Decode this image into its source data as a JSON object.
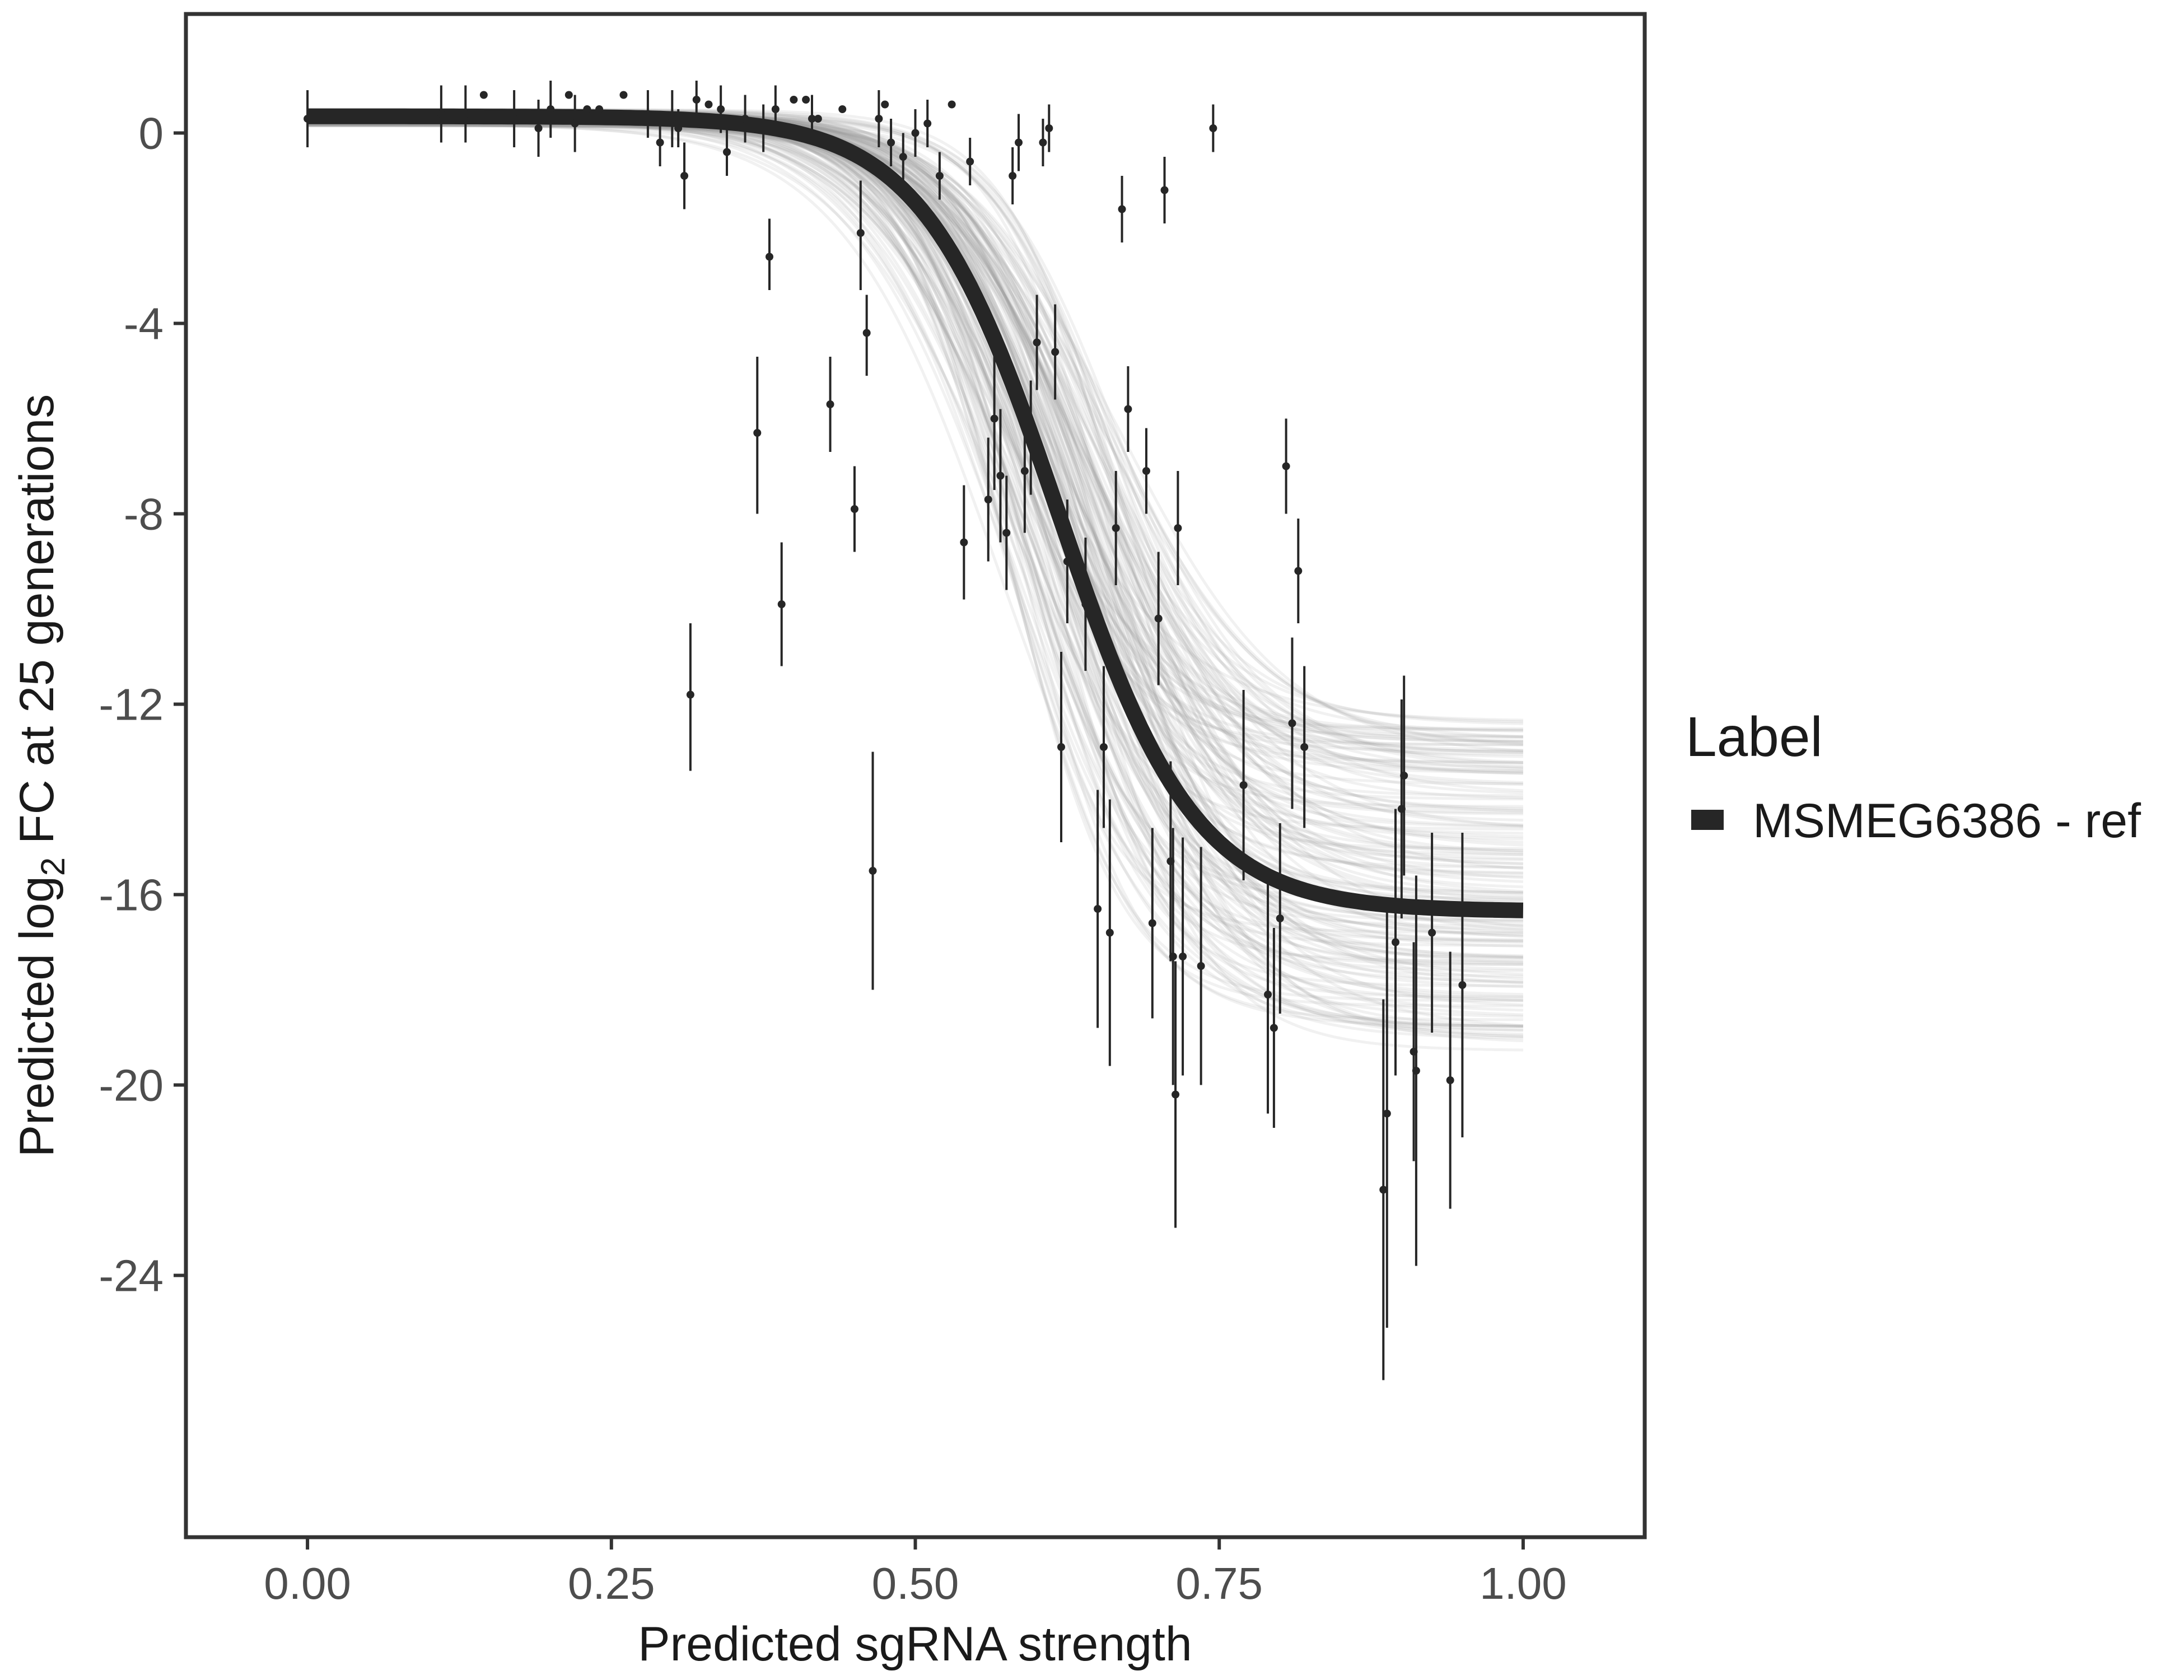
{
  "chart_data": {
    "type": "scatter",
    "xlabel": "Predicted sgRNA strength",
    "ylabel_prefix": "Predicted  log",
    "ylabel_sub": "2",
    "ylabel_suffix": " FC at 25 generations",
    "xlim": [
      -0.1,
      1.1
    ],
    "ylim": [
      -29.5,
      2.5
    ],
    "x_ticks": [
      0.0,
      0.25,
      0.5,
      0.75,
      1.0
    ],
    "x_tick_labels": [
      "0.00",
      "0.25",
      "0.50",
      "0.75",
      "1.00"
    ],
    "y_ticks": [
      0,
      -4,
      -8,
      -12,
      -16,
      -20,
      -24
    ],
    "y_tick_labels": [
      "0",
      "-4",
      "-8",
      "-12",
      "-16",
      "-20",
      "-24"
    ],
    "grid": false,
    "legend": {
      "title": "Label",
      "position": "right",
      "entries": [
        {
          "name": "MSMEG6386 - ref",
          "color": "#262626"
        }
      ]
    },
    "fit_curve": {
      "name": "MSMEG6386 - ref",
      "model": "logistic",
      "upper": 0.35,
      "lower": -16.35,
      "midpoint": 0.618,
      "scale": 0.056,
      "color": "#262626"
    },
    "posterior_band": {
      "n_draws": 160,
      "upper_range": [
        0.15,
        0.5
      ],
      "lower_range": [
        -19.3,
        -12.2
      ],
      "midpoint_range": [
        0.57,
        0.67
      ],
      "scale_range": [
        0.045,
        0.07
      ],
      "color": "#999999"
    },
    "series": [
      {
        "name": "observations",
        "points": [
          {
            "x": 0.0,
            "y": 0.3,
            "lo": -0.3,
            "hi": 0.9
          },
          {
            "x": 0.11,
            "y": 0.4,
            "lo": -0.2,
            "hi": 1.0
          },
          {
            "x": 0.13,
            "y": 0.4,
            "lo": -0.2,
            "hi": 1.0
          },
          {
            "x": 0.145,
            "y": 0.8,
            "lo": 0.8,
            "hi": 0.8
          },
          {
            "x": 0.17,
            "y": 0.3,
            "lo": -0.3,
            "hi": 0.9
          },
          {
            "x": 0.19,
            "y": 0.1,
            "lo": -0.5,
            "hi": 0.7
          },
          {
            "x": 0.2,
            "y": 0.5,
            "lo": -0.1,
            "hi": 1.1
          },
          {
            "x": 0.215,
            "y": 0.8,
            "lo": 0.8,
            "hi": 0.8
          },
          {
            "x": 0.22,
            "y": 0.2,
            "lo": -0.4,
            "hi": 0.8
          },
          {
            "x": 0.23,
            "y": 0.5,
            "lo": 0.5,
            "hi": 0.5
          },
          {
            "x": 0.24,
            "y": 0.5,
            "lo": 0.5,
            "hi": 0.5
          },
          {
            "x": 0.26,
            "y": 0.8,
            "lo": 0.8,
            "hi": 0.8
          },
          {
            "x": 0.28,
            "y": 0.4,
            "lo": -0.1,
            "hi": 0.9
          },
          {
            "x": 0.29,
            "y": -0.2,
            "lo": -0.7,
            "hi": 0.3
          },
          {
            "x": 0.3,
            "y": 0.3,
            "lo": -0.3,
            "hi": 0.9
          },
          {
            "x": 0.305,
            "y": 0.1,
            "lo": -0.3,
            "hi": 0.5
          },
          {
            "x": 0.31,
            "y": -0.9,
            "lo": -1.6,
            "hi": -0.2
          },
          {
            "x": 0.315,
            "y": -11.8,
            "lo": -13.4,
            "hi": -10.3
          },
          {
            "x": 0.32,
            "y": 0.7,
            "lo": 0.3,
            "hi": 1.1
          },
          {
            "x": 0.33,
            "y": 0.6,
            "lo": 0.6,
            "hi": 0.6
          },
          {
            "x": 0.34,
            "y": 0.5,
            "lo": 0.0,
            "hi": 1.0
          },
          {
            "x": 0.345,
            "y": -0.4,
            "lo": -0.9,
            "hi": 0.1
          },
          {
            "x": 0.36,
            "y": 0.3,
            "lo": -0.2,
            "hi": 0.8
          },
          {
            "x": 0.37,
            "y": -6.3,
            "lo": -8.0,
            "hi": -4.7
          },
          {
            "x": 0.375,
            "y": 0.1,
            "lo": -0.4,
            "hi": 0.6
          },
          {
            "x": 0.38,
            "y": -2.6,
            "lo": -3.3,
            "hi": -1.8
          },
          {
            "x": 0.385,
            "y": 0.5,
            "lo": 0.0,
            "hi": 1.0
          },
          {
            "x": 0.39,
            "y": -9.9,
            "lo": -11.2,
            "hi": -8.6
          },
          {
            "x": 0.4,
            "y": 0.7,
            "lo": 0.7,
            "hi": 0.7
          },
          {
            "x": 0.41,
            "y": 0.7,
            "lo": 0.7,
            "hi": 0.7
          },
          {
            "x": 0.415,
            "y": 0.3,
            "lo": -0.2,
            "hi": 0.8
          },
          {
            "x": 0.42,
            "y": 0.3,
            "lo": 0.3,
            "hi": 0.3
          },
          {
            "x": 0.43,
            "y": -5.7,
            "lo": -6.7,
            "hi": -4.7
          },
          {
            "x": 0.44,
            "y": 0.5,
            "lo": 0.5,
            "hi": 0.5
          },
          {
            "x": 0.45,
            "y": -7.9,
            "lo": -8.8,
            "hi": -7.0
          },
          {
            "x": 0.455,
            "y": -2.1,
            "lo": -3.3,
            "hi": -1.0
          },
          {
            "x": 0.46,
            "y": -4.2,
            "lo": -5.1,
            "hi": -3.4
          },
          {
            "x": 0.465,
            "y": -15.5,
            "lo": -18.0,
            "hi": -13.0
          },
          {
            "x": 0.47,
            "y": 0.3,
            "lo": -0.3,
            "hi": 0.9
          },
          {
            "x": 0.475,
            "y": 0.6,
            "lo": 0.6,
            "hi": 0.6
          },
          {
            "x": 0.48,
            "y": -0.2,
            "lo": -0.7,
            "hi": 0.3
          },
          {
            "x": 0.49,
            "y": -0.5,
            "lo": -1.0,
            "hi": 0.0
          },
          {
            "x": 0.5,
            "y": 0.0,
            "lo": -0.5,
            "hi": 0.5
          },
          {
            "x": 0.51,
            "y": 0.2,
            "lo": -0.3,
            "hi": 0.7
          },
          {
            "x": 0.52,
            "y": -0.9,
            "lo": -1.4,
            "hi": -0.4
          },
          {
            "x": 0.53,
            "y": 0.6,
            "lo": 0.6,
            "hi": 0.6
          },
          {
            "x": 0.54,
            "y": -8.6,
            "lo": -9.8,
            "hi": -7.4
          },
          {
            "x": 0.545,
            "y": -0.6,
            "lo": -1.1,
            "hi": -0.1
          },
          {
            "x": 0.56,
            "y": -7.7,
            "lo": -9.0,
            "hi": -6.4
          },
          {
            "x": 0.565,
            "y": -6.0,
            "lo": -7.5,
            "hi": -4.5
          },
          {
            "x": 0.57,
            "y": -7.2,
            "lo": -8.6,
            "hi": -5.8
          },
          {
            "x": 0.575,
            "y": -8.4,
            "lo": -9.6,
            "hi": -7.2
          },
          {
            "x": 0.58,
            "y": -0.9,
            "lo": -1.5,
            "hi": -0.3
          },
          {
            "x": 0.585,
            "y": -0.2,
            "lo": -0.8,
            "hi": 0.4
          },
          {
            "x": 0.59,
            "y": -7.1,
            "lo": -8.4,
            "hi": -5.8
          },
          {
            "x": 0.595,
            "y": -6.4,
            "lo": -7.6,
            "hi": -5.2
          },
          {
            "x": 0.6,
            "y": -4.4,
            "lo": -5.4,
            "hi": -3.4
          },
          {
            "x": 0.605,
            "y": -0.2,
            "lo": -0.7,
            "hi": 0.3
          },
          {
            "x": 0.61,
            "y": 0.1,
            "lo": -0.4,
            "hi": 0.6
          },
          {
            "x": 0.615,
            "y": -4.6,
            "lo": -5.6,
            "hi": -3.6
          },
          {
            "x": 0.62,
            "y": -12.9,
            "lo": -14.9,
            "hi": -10.9
          },
          {
            "x": 0.625,
            "y": -9.0,
            "lo": -10.3,
            "hi": -7.7
          },
          {
            "x": 0.64,
            "y": -9.9,
            "lo": -11.3,
            "hi": -8.5
          },
          {
            "x": 0.65,
            "y": -16.3,
            "lo": -18.8,
            "hi": -13.8
          },
          {
            "x": 0.655,
            "y": -12.9,
            "lo": -14.6,
            "hi": -11.2
          },
          {
            "x": 0.66,
            "y": -16.8,
            "lo": -19.6,
            "hi": -14.0
          },
          {
            "x": 0.665,
            "y": -8.3,
            "lo": -9.5,
            "hi": -7.1
          },
          {
            "x": 0.67,
            "y": -1.6,
            "lo": -2.3,
            "hi": -0.9
          },
          {
            "x": 0.675,
            "y": -5.8,
            "lo": -6.7,
            "hi": -4.9
          },
          {
            "x": 0.69,
            "y": -7.1,
            "lo": -8.0,
            "hi": -6.2
          },
          {
            "x": 0.695,
            "y": -16.6,
            "lo": -18.6,
            "hi": -14.6
          },
          {
            "x": 0.7,
            "y": -10.2,
            "lo": -11.6,
            "hi": -8.8
          },
          {
            "x": 0.705,
            "y": -1.2,
            "lo": -1.9,
            "hi": -0.5
          },
          {
            "x": 0.71,
            "y": -15.3,
            "lo": -17.4,
            "hi": -13.2
          },
          {
            "x": 0.712,
            "y": -17.3,
            "lo": -20.0,
            "hi": -14.6
          },
          {
            "x": 0.714,
            "y": -20.2,
            "lo": -23.0,
            "hi": -17.4
          },
          {
            "x": 0.716,
            "y": -8.3,
            "lo": -9.5,
            "hi": -7.1
          },
          {
            "x": 0.72,
            "y": -17.3,
            "lo": -19.8,
            "hi": -14.8
          },
          {
            "x": 0.735,
            "y": -17.5,
            "lo": -20.0,
            "hi": -15.0
          },
          {
            "x": 0.745,
            "y": 0.1,
            "lo": -0.4,
            "hi": 0.6
          },
          {
            "x": 0.77,
            "y": -13.7,
            "lo": -15.7,
            "hi": -11.7
          },
          {
            "x": 0.79,
            "y": -18.1,
            "lo": -20.6,
            "hi": -15.6
          },
          {
            "x": 0.795,
            "y": -18.8,
            "lo": -20.9,
            "hi": -16.7
          },
          {
            "x": 0.8,
            "y": -16.5,
            "lo": -18.5,
            "hi": -14.5
          },
          {
            "x": 0.805,
            "y": -7.0,
            "lo": -8.0,
            "hi": -6.0
          },
          {
            "x": 0.81,
            "y": -12.4,
            "lo": -14.2,
            "hi": -10.6
          },
          {
            "x": 0.815,
            "y": -9.2,
            "lo": -10.3,
            "hi": -8.1
          },
          {
            "x": 0.82,
            "y": -12.9,
            "lo": -14.6,
            "hi": -11.2
          },
          {
            "x": 0.885,
            "y": -22.2,
            "lo": -26.2,
            "hi": -18.2
          },
          {
            "x": 0.888,
            "y": -20.6,
            "lo": -25.1,
            "hi": -16.1
          },
          {
            "x": 0.895,
            "y": -17.0,
            "lo": -19.8,
            "hi": -14.2
          },
          {
            "x": 0.9,
            "y": -14.2,
            "lo": -16.5,
            "hi": -11.9
          },
          {
            "x": 0.902,
            "y": -13.5,
            "lo": -15.6,
            "hi": -11.4
          },
          {
            "x": 0.91,
            "y": -19.3,
            "lo": -21.6,
            "hi": -17.0
          },
          {
            "x": 0.912,
            "y": -19.7,
            "lo": -23.8,
            "hi": -15.6
          },
          {
            "x": 0.925,
            "y": -16.8,
            "lo": -18.9,
            "hi": -14.7
          },
          {
            "x": 0.94,
            "y": -19.9,
            "lo": -22.6,
            "hi": -17.2
          },
          {
            "x": 0.95,
            "y": -17.9,
            "lo": -21.1,
            "hi": -14.7
          }
        ]
      }
    ]
  }
}
